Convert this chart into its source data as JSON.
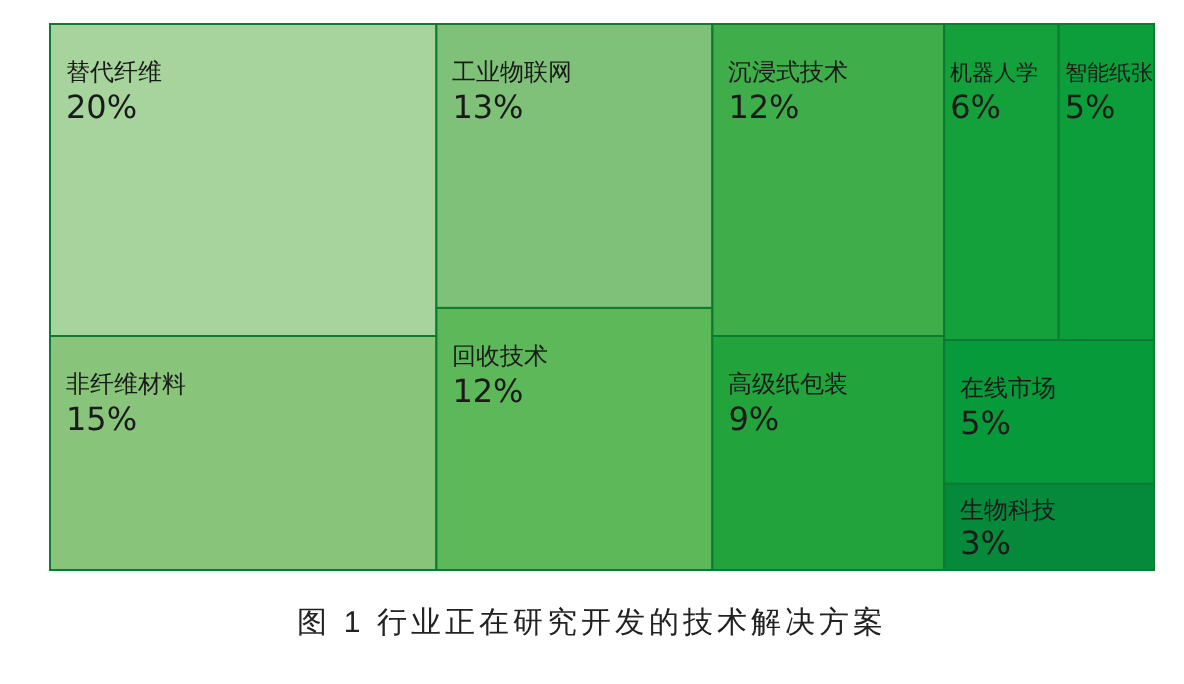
{
  "chart_data": {
    "type": "other",
    "categories": [
      "替代纤维",
      "非纤维材料",
      "工业物联网",
      "回收技术",
      "沉浸式技术",
      "高级纸包装",
      "机器人学",
      "智能纸张",
      "在线市场",
      "生物科技"
    ],
    "values": [
      20,
      15,
      13,
      12,
      12,
      9,
      6,
      5,
      5,
      3
    ],
    "value_labels": [
      "20%",
      "15%",
      "13%",
      "12%",
      "12%",
      "9%",
      "6%",
      "5%",
      "5%",
      "3%"
    ],
    "colors": [
      "#a6d49c",
      "#88c47a",
      "#80c179",
      "#5db85a",
      "#3fae4a",
      "#22a33b",
      "#14a03a",
      "#0b9e3a",
      "#079a3b",
      "#05893a"
    ],
    "annotations": [
      "图 1  行业正在研究开发的技术解决方案"
    ]
  }
}
